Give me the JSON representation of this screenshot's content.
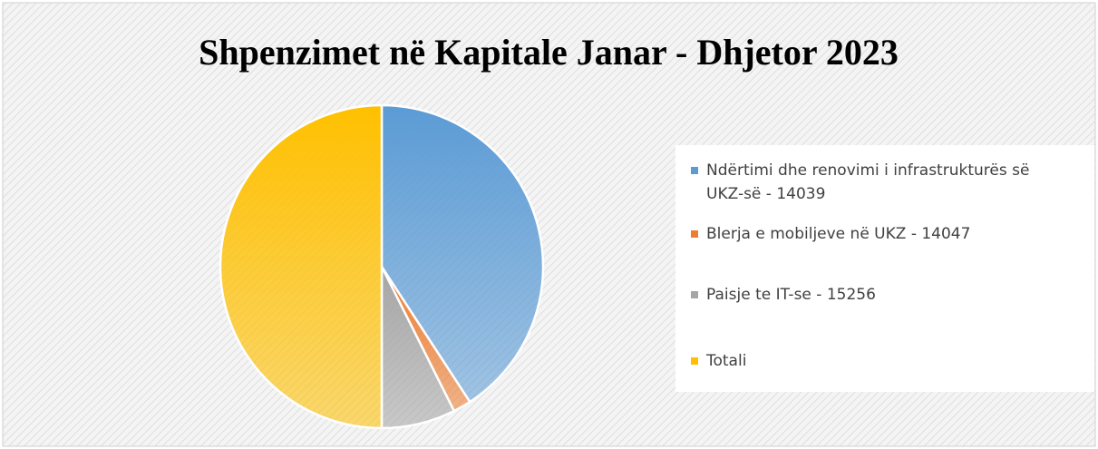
{
  "chart_data": {
    "type": "pie",
    "title": "Shpenzimet në Kapitale Janar - Dhjetor 2023",
    "categories": [
      "Ndërtimi  dhe renovimi i infrastrukturës së UKZ-së - 14039",
      "Blerja e mobiljeve në UKZ - 14047",
      "Paisje te IT-se - 15256",
      "Totali"
    ],
    "values": [
      40.8,
      1.8,
      7.4,
      50
    ],
    "colors": [
      "#5b9bd5",
      "#ed7d31",
      "#a5a5a5",
      "#ffc000"
    ],
    "legend": "right"
  }
}
